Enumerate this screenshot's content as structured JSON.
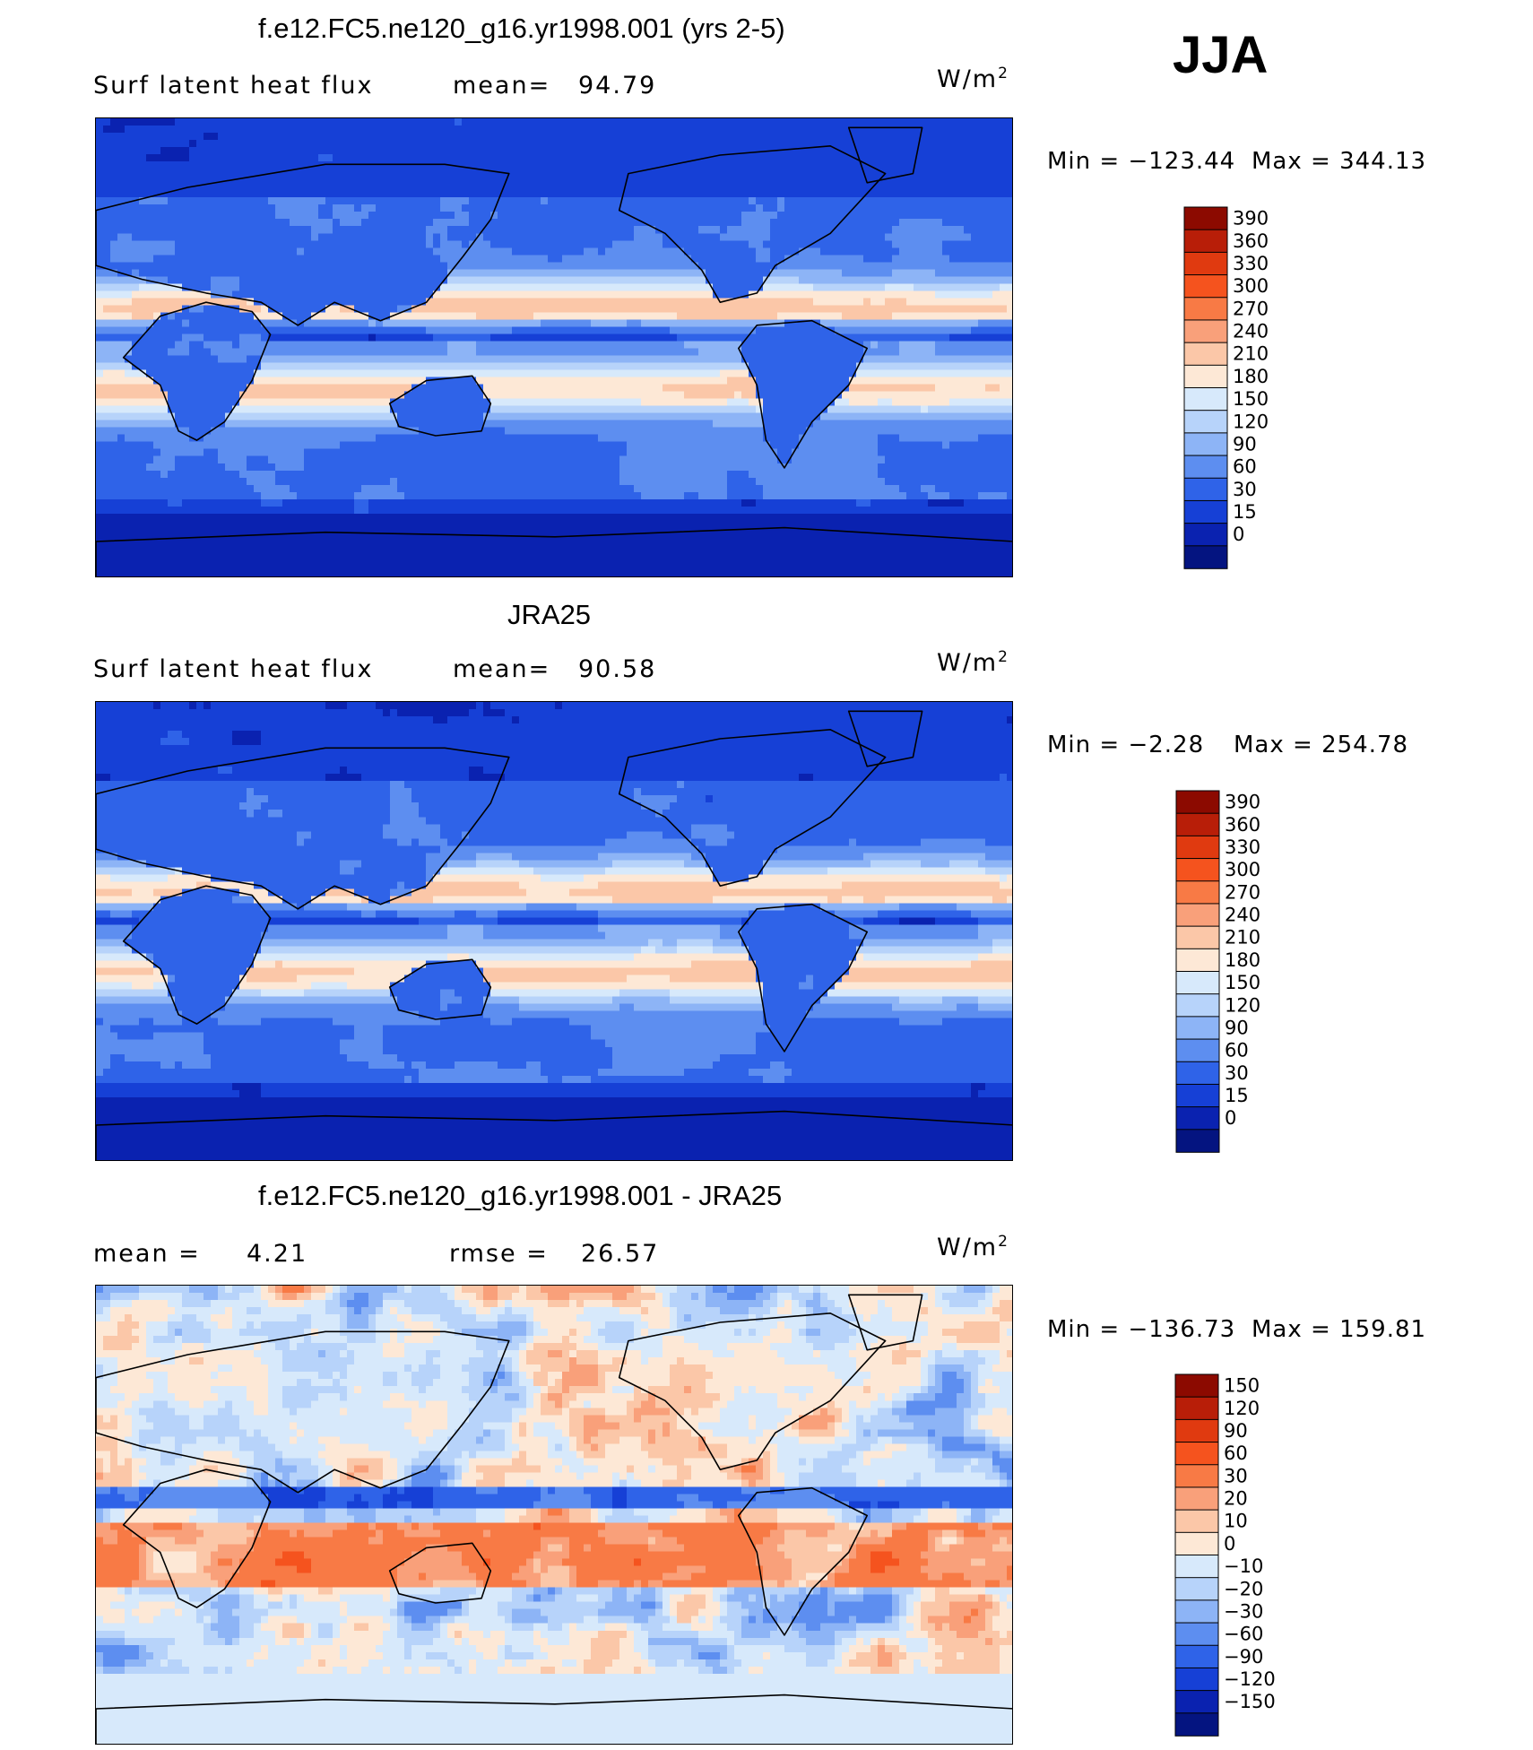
{
  "season": "JJA",
  "chart_data": [
    {
      "type": "heatmap",
      "title": "f.e12.FC5.ne120_g16.yr1998.001 (yrs 2-5)",
      "left_label": "Surf latent heat flux",
      "stat_label": "mean=",
      "stat_value": "94.79",
      "units": "W/m",
      "units_sup": "2",
      "min_label": "Min  =  −123.44",
      "max_label": "Max  =  344.13",
      "min": -123.44,
      "max": 344.13,
      "colorbar_ticks": [
        "390",
        "360",
        "330",
        "300",
        "270",
        "240",
        "210",
        "180",
        "150",
        "120",
        "90",
        "60",
        "30",
        "15",
        "0"
      ],
      "colorbar_colors": [
        "#8c0a00",
        "#b81e08",
        "#e03a10",
        "#f5531e",
        "#f87a45",
        "#f9a07a",
        "#fbc7a8",
        "#fde8d6",
        "#d7e9fb",
        "#b7d3fa",
        "#8db4f6",
        "#5d8ef0",
        "#2f63e8",
        "#1640d6",
        "#0a22b0",
        "#041480"
      ],
      "cmap": "heat_positive"
    },
    {
      "type": "heatmap",
      "title": "JRA25",
      "left_label": "Surf latent heat flux",
      "stat_label": "mean=",
      "stat_value": "90.58",
      "units": "W/m",
      "units_sup": "2",
      "min_label": "Min  =    −2.28",
      "max_label": "Max  =  254.78",
      "min": -2.28,
      "max": 254.78,
      "colorbar_ticks": [
        "390",
        "360",
        "330",
        "300",
        "270",
        "240",
        "210",
        "180",
        "150",
        "120",
        "90",
        "60",
        "30",
        "15",
        "0"
      ],
      "colorbar_colors": [
        "#8c0a00",
        "#b81e08",
        "#e03a10",
        "#f5531e",
        "#f87a45",
        "#f9a07a",
        "#fbc7a8",
        "#fde8d6",
        "#d7e9fb",
        "#b7d3fa",
        "#8db4f6",
        "#5d8ef0",
        "#2f63e8",
        "#1640d6",
        "#0a22b0",
        "#041480"
      ],
      "cmap": "heat_positive"
    },
    {
      "type": "heatmap",
      "title": "f.e12.FC5.ne120_g16.yr1998.001 - JRA25",
      "left_label": "mean  =",
      "left_value": "4.21",
      "stat_label": "rmse  =",
      "stat_value": "26.57",
      "units": "W/m",
      "units_sup": "2",
      "min_label": "Min  =  −136.73",
      "max_label": "Max  =  159.81",
      "min": -136.73,
      "max": 159.81,
      "colorbar_ticks": [
        "150",
        "120",
        "90",
        "60",
        "30",
        "20",
        "10",
        "0",
        "−10",
        "−20",
        "−30",
        "−60",
        "−90",
        "−120",
        "−150"
      ],
      "colorbar_colors": [
        "#8c0a00",
        "#b81e08",
        "#e03a10",
        "#f5531e",
        "#f87a45",
        "#f9a07a",
        "#fbc7a8",
        "#fde8d6",
        "#d7e9fb",
        "#b7d3fa",
        "#8db4f6",
        "#5d8ef0",
        "#2f63e8",
        "#1640d6",
        "#0a22b0",
        "#041480"
      ],
      "cmap": "diff"
    }
  ]
}
